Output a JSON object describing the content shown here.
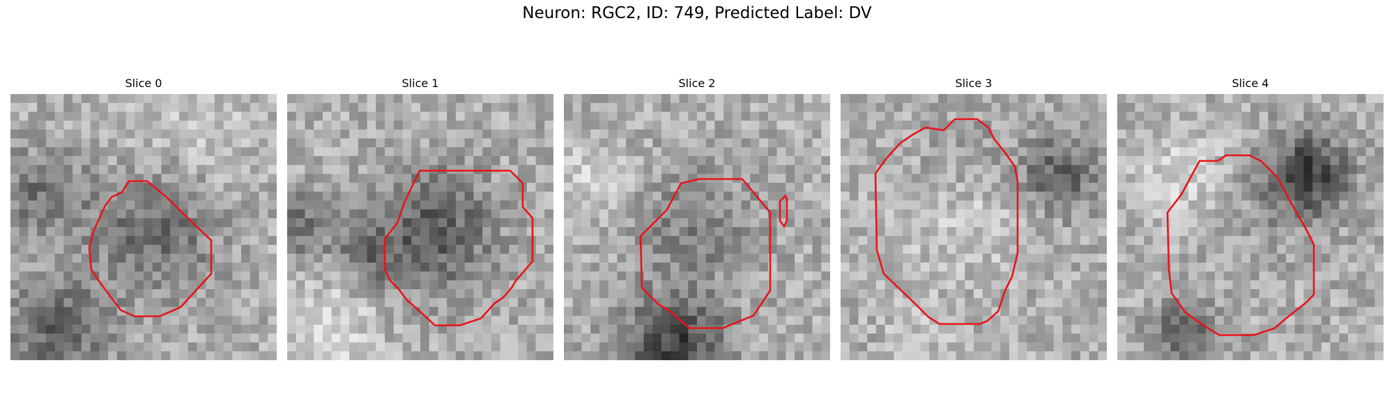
{
  "figure": {
    "title": "Neuron: RGC2, ID: 749, Predicted Label: DV"
  },
  "colors": {
    "contour": "#e8141a",
    "background": "#ffffff"
  },
  "slices": [
    {
      "label": "Slice 0"
    },
    {
      "label": "Slice 1"
    },
    {
      "label": "Slice 2"
    },
    {
      "label": "Slice 3"
    },
    {
      "label": "Slice 4"
    }
  ]
}
